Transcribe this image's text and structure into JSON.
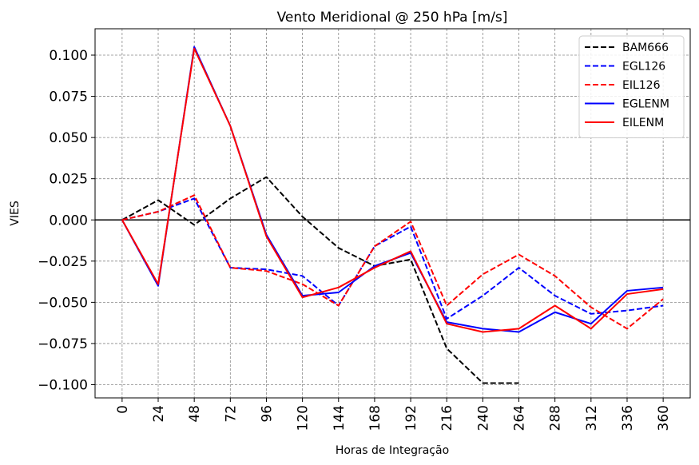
{
  "chart_data": {
    "type": "line",
    "title": "Vento Meridional @ 250 hPa [m/s]",
    "xlabel": "Horas de Integração",
    "ylabel": "VIES",
    "x": [
      0,
      24,
      48,
      72,
      96,
      120,
      144,
      168,
      192,
      216,
      240,
      264,
      288,
      312,
      336,
      360
    ],
    "xtick_labels": [
      "0",
      "24",
      "48",
      "72",
      "96",
      "120",
      "144",
      "168",
      "192",
      "216",
      "240",
      "264",
      "288",
      "312",
      "336",
      "360"
    ],
    "xlim": [
      -18,
      378
    ],
    "ylim": [
      -0.108,
      0.116
    ],
    "yticks": [
      -0.1,
      -0.075,
      -0.05,
      -0.025,
      0.0,
      0.025,
      0.05,
      0.075,
      0.1
    ],
    "ytick_labels": [
      "−0.100",
      "−0.075",
      "−0.050",
      "−0.025",
      "0.000",
      "0.025",
      "0.050",
      "0.075",
      "0.100"
    ],
    "grid": true,
    "zero_line": true,
    "legend_position": "top-right",
    "series": [
      {
        "name": "BAM666",
        "color": "#000000",
        "style": "dashed",
        "values": [
          0.0,
          0.012,
          -0.003,
          0.013,
          0.026,
          0.002,
          -0.017,
          -0.028,
          -0.024,
          -0.078,
          -0.099,
          -0.099,
          null,
          null,
          null,
          null
        ]
      },
      {
        "name": "EGL126",
        "color": "#0000ff",
        "style": "dashed",
        "values": [
          0.0,
          0.005,
          0.013,
          -0.029,
          -0.03,
          -0.034,
          -0.052,
          -0.016,
          -0.004,
          -0.06,
          -0.046,
          -0.029,
          -0.046,
          -0.057,
          -0.055,
          -0.052
        ]
      },
      {
        "name": "EIL126",
        "color": "#ff0000",
        "style": "dashed",
        "values": [
          0.0,
          0.005,
          0.015,
          -0.029,
          -0.031,
          -0.039,
          -0.052,
          -0.016,
          -0.001,
          -0.052,
          -0.033,
          -0.021,
          -0.034,
          -0.053,
          -0.066,
          -0.048
        ]
      },
      {
        "name": "EGLENM",
        "color": "#0000ff",
        "style": "solid",
        "values": [
          0.0,
          -0.04,
          0.105,
          0.057,
          -0.009,
          -0.046,
          -0.044,
          -0.028,
          -0.02,
          -0.062,
          -0.066,
          -0.068,
          -0.056,
          -0.063,
          -0.043,
          -0.041
        ]
      },
      {
        "name": "EILENM",
        "color": "#ff0000",
        "style": "solid",
        "values": [
          0.0,
          -0.039,
          0.104,
          0.057,
          -0.01,
          -0.047,
          -0.041,
          -0.029,
          -0.019,
          -0.063,
          -0.068,
          -0.066,
          -0.052,
          -0.066,
          -0.045,
          -0.042
        ]
      }
    ]
  }
}
